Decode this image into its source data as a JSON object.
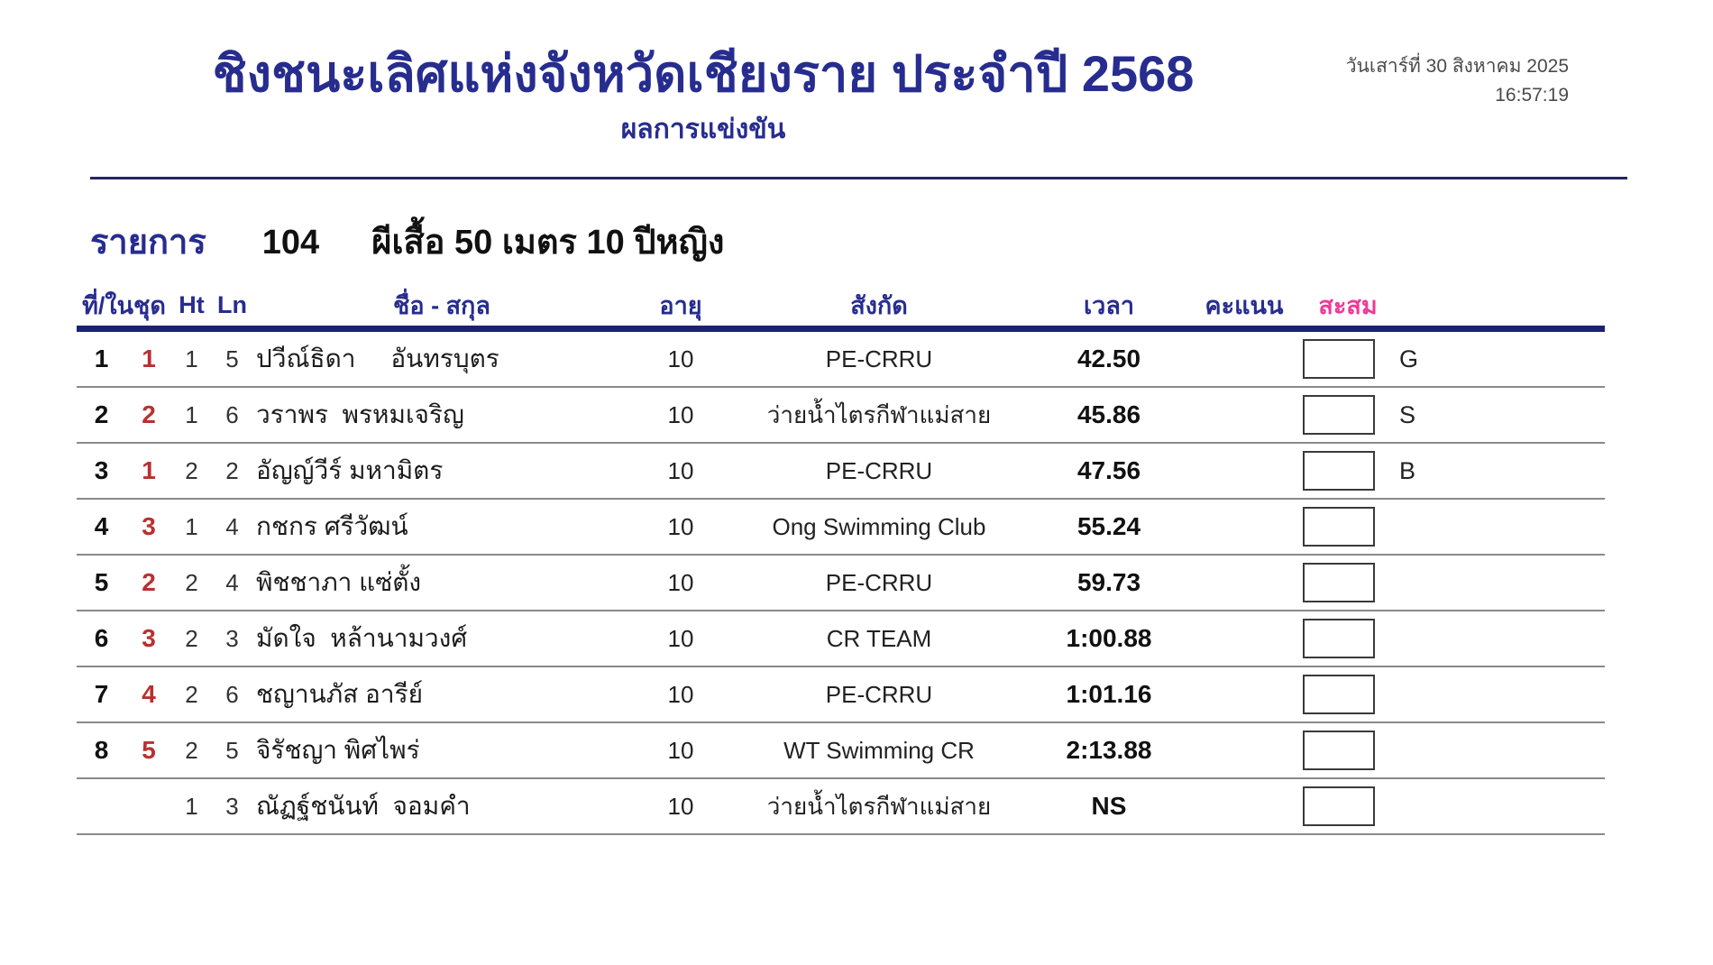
{
  "header": {
    "title": "ชิงชนะเลิศแห่งจังหวัดเชียงราย ประจำปี 2568",
    "subtitle": "ผลการแข่งขัน",
    "date": "วันเสาร์ที่ 30 สิงหาคม 2025",
    "time": "16:57:19"
  },
  "event": {
    "label": "รายการ",
    "number": "104",
    "name": "ผีเสื้อ 50 เมตร 10 ปีหญิง"
  },
  "table": {
    "headers": {
      "place": "ที่/ในชุด",
      "heat": "Ht",
      "lane": "Ln",
      "name": "ชื่อ - สกุล",
      "age": "อายุ",
      "club": "สังกัด",
      "time": "เวลา",
      "score": "คะแนน",
      "accumulate": "สะสม"
    },
    "rows": [
      {
        "place": "1",
        "rank_in_heat": "1",
        "heat": "1",
        "lane": "5",
        "name": "ปวีณ์ธิดา     อันทรบุตร",
        "age": "10",
        "club": "PE-CRRU",
        "time": "42.50",
        "score": "",
        "medal": "G"
      },
      {
        "place": "2",
        "rank_in_heat": "2",
        "heat": "1",
        "lane": "6",
        "name": "วราพร  พรหมเจริญ",
        "age": "10",
        "club": "ว่ายน้ำไตรกีฬาแม่สาย",
        "time": "45.86",
        "score": "",
        "medal": "S"
      },
      {
        "place": "3",
        "rank_in_heat": "1",
        "heat": "2",
        "lane": "2",
        "name": "อัญญ์วีร์ มหามิตร",
        "age": "10",
        "club": "PE-CRRU",
        "time": "47.56",
        "score": "",
        "medal": "B"
      },
      {
        "place": "4",
        "rank_in_heat": "3",
        "heat": "1",
        "lane": "4",
        "name": "กชกร ศรีวัฒน์",
        "age": "10",
        "club": "Ong Swimming Club",
        "time": "55.24",
        "score": "",
        "medal": ""
      },
      {
        "place": "5",
        "rank_in_heat": "2",
        "heat": "2",
        "lane": "4",
        "name": "พิชชาภา แซ่ตั้ง",
        "age": "10",
        "club": "PE-CRRU",
        "time": "59.73",
        "score": "",
        "medal": ""
      },
      {
        "place": "6",
        "rank_in_heat": "3",
        "heat": "2",
        "lane": "3",
        "name": "มัดใจ  หล้านามวงศ์",
        "age": "10",
        "club": "CR TEAM",
        "time": "1:00.88",
        "score": "",
        "medal": ""
      },
      {
        "place": "7",
        "rank_in_heat": "4",
        "heat": "2",
        "lane": "6",
        "name": "ชญานภัส อารีย์",
        "age": "10",
        "club": "PE-CRRU",
        "time": "1:01.16",
        "score": "",
        "medal": ""
      },
      {
        "place": "8",
        "rank_in_heat": "5",
        "heat": "2",
        "lane": "5",
        "name": "จิรัชญา พิศไพร่",
        "age": "10",
        "club": "WT Swimming CR",
        "time": "2:13.88",
        "score": "",
        "medal": ""
      },
      {
        "place": "",
        "rank_in_heat": "",
        "heat": "1",
        "lane": "3",
        "name": "ณัฏฐ์ชนันท์  จอมคำ",
        "age": "10",
        "club": "ว่ายน้ำไตรกีฬาแม่สาย",
        "time": "NS",
        "score": "",
        "medal": ""
      }
    ]
  },
  "colors": {
    "title_navy": "#272c8f",
    "rank_red": "#b93030",
    "accumulate_pink": "#ee3a97",
    "row_line_gray": "#8a8a8a",
    "header_line_navy": "#1b2272"
  }
}
